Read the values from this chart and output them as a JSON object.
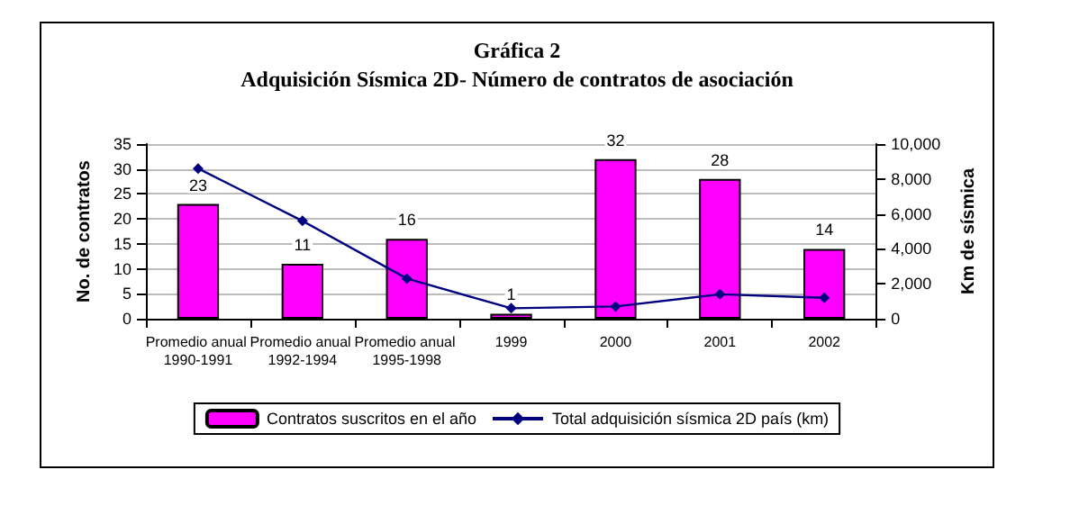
{
  "chart_data": {
    "type": "bar",
    "title": "Gráfica 2",
    "subtitle": "Adquisición Sísmica 2D- Número de contratos de asociación",
    "ylabel": "No. de contratos",
    "y2label": "Km de sísmica",
    "categories": [
      "Promedio anual 1990-1991",
      "Promedio anual 1992-1994",
      "Promedio anual 1995-1998",
      "1999",
      "2000",
      "2001",
      "2002"
    ],
    "series": [
      {
        "name": "Contratos suscritos en el año",
        "color": "#ff00ff",
        "values": [
          23,
          11,
          16,
          1,
          32,
          28,
          14
        ],
        "data_labels": true
      },
      {
        "name": "Total adquisición sísmica 2D país (km)",
        "type": "line",
        "axis": "y2",
        "color": "#000080",
        "marker": "diamond",
        "values": [
          8600,
          5600,
          2300,
          600,
          700,
          1400,
          1200
        ]
      }
    ],
    "ylim": [
      0,
      35
    ],
    "yticks": [
      0,
      5,
      10,
      15,
      20,
      25,
      30,
      35
    ],
    "y2lim": [
      0,
      10000
    ],
    "y2ticks": [
      0,
      {
        "value": 2000,
        "label": "2,000"
      },
      {
        "value": 4000,
        "label": "4,000"
      },
      {
        "value": 6000,
        "label": "6,000"
      },
      {
        "value": 8000,
        "label": "8,000"
      },
      {
        "value": 10000,
        "label": "10,000"
      }
    ],
    "grid": "y",
    "legend": "bottom"
  }
}
